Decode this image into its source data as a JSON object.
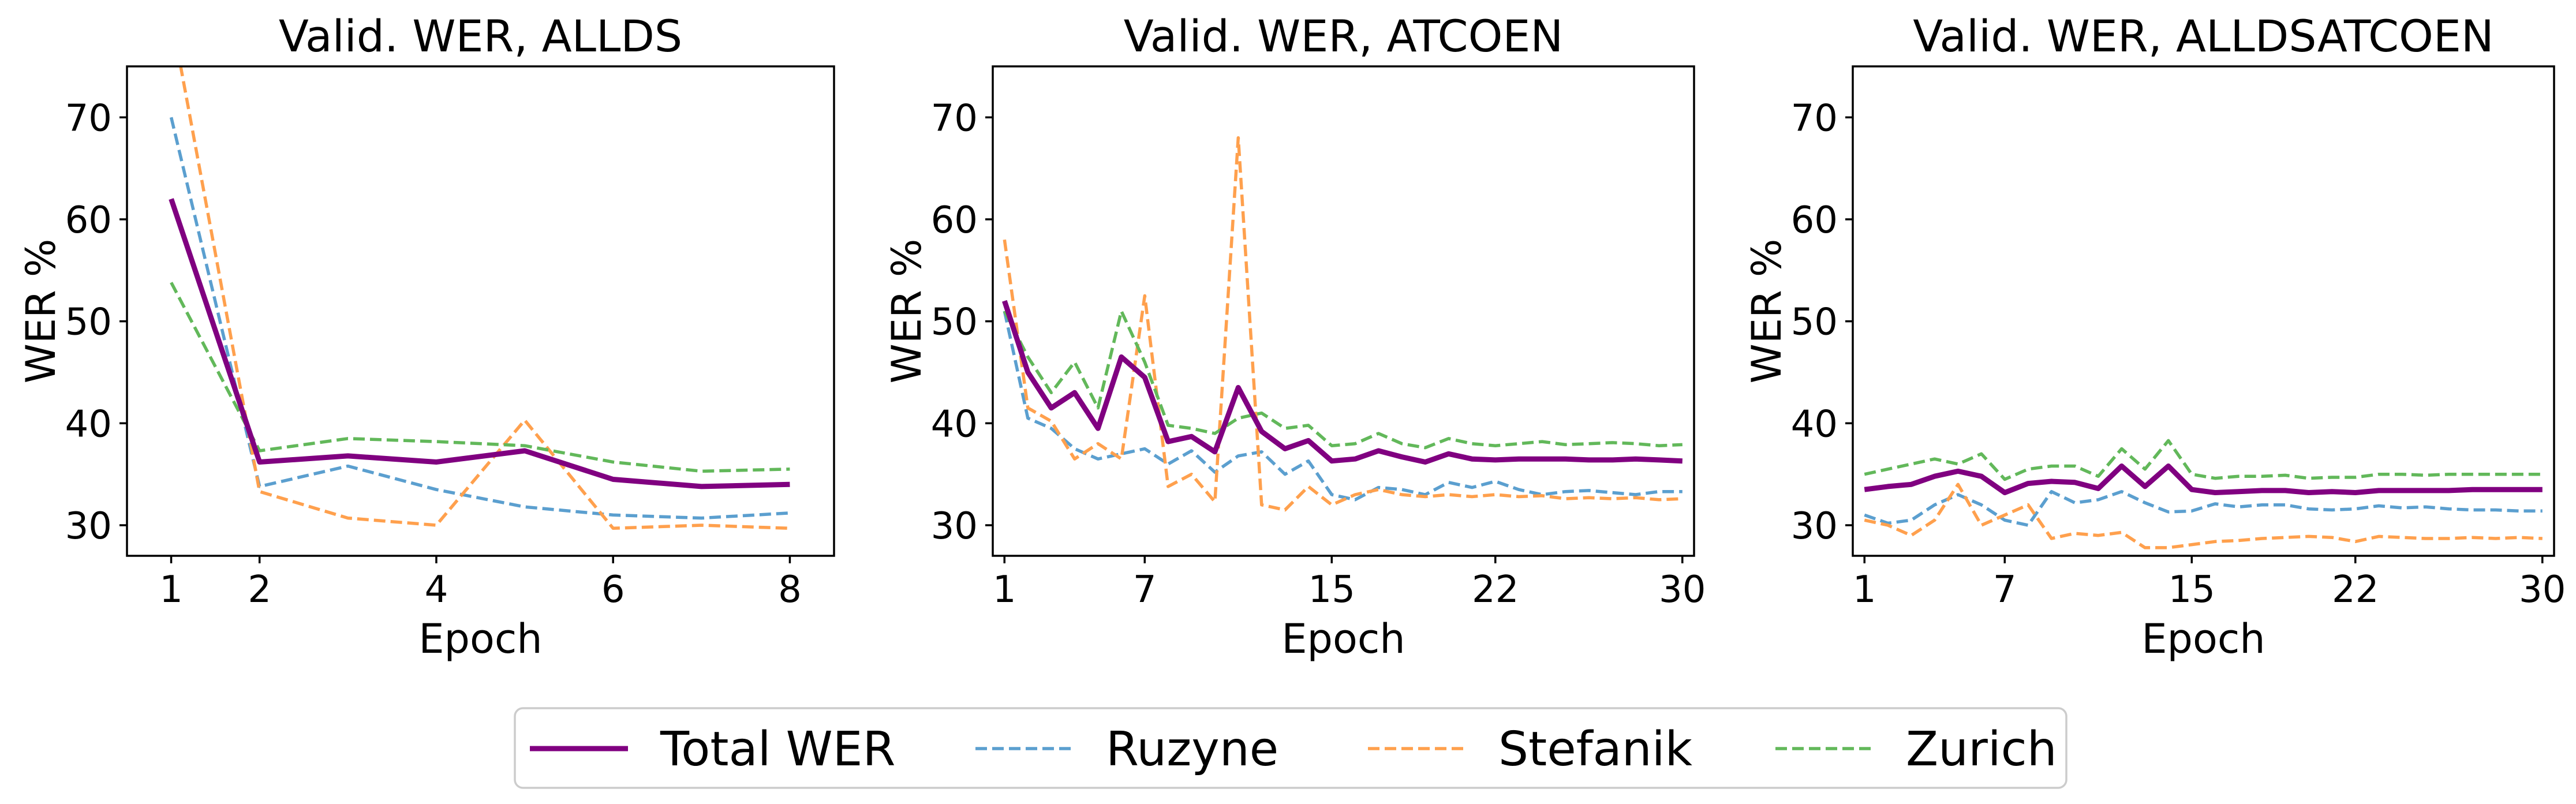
{
  "legend": {
    "placement": "bottom-center",
    "entries": [
      {
        "label": "Total WER",
        "color": "#800080",
        "style": "solid"
      },
      {
        "label": "Ruzyne",
        "color": "#5b9fcf",
        "style": "dashed"
      },
      {
        "label": "Stefanik",
        "color": "#ffa04d",
        "style": "dashed"
      },
      {
        "label": "Zurich",
        "color": "#62b85a",
        "style": "dashed"
      }
    ]
  },
  "chart_data": [
    {
      "type": "line",
      "title": "Valid. WER, ALLDS",
      "xlabel": "Epoch",
      "ylabel": "WER %",
      "xlim": [
        0.5,
        8.5
      ],
      "ylim": [
        27,
        75
      ],
      "xticks": [
        1,
        2,
        4,
        6,
        8
      ],
      "yticks": [
        30,
        40,
        50,
        60,
        70
      ],
      "x": [
        1,
        2,
        3,
        4,
        5,
        6,
        7,
        8
      ],
      "series": [
        {
          "name": "Total WER",
          "values": [
            62,
            36.2,
            36.8,
            36.2,
            37.3,
            34.5,
            33.8,
            34.0
          ]
        },
        {
          "name": "Ruzyne",
          "values": [
            70,
            33.8,
            35.8,
            33.5,
            31.8,
            31.0,
            30.7,
            31.2
          ]
        },
        {
          "name": "Stefanik",
          "values": [
            80,
            33.3,
            30.7,
            30.0,
            40.3,
            29.7,
            30.0,
            29.7
          ]
        },
        {
          "name": "Zurich",
          "values": [
            53.8,
            37.3,
            38.5,
            38.2,
            37.8,
            36.2,
            35.3,
            35.5
          ]
        }
      ]
    },
    {
      "type": "line",
      "title": "Valid. WER, ATCOEN",
      "xlabel": "Epoch",
      "ylabel": "WER %",
      "xlim": [
        0.5,
        30.5
      ],
      "ylim": [
        27,
        75
      ],
      "xticks": [
        1,
        7,
        15,
        22,
        30
      ],
      "yticks": [
        30,
        40,
        50,
        60,
        70
      ],
      "x": [
        1,
        2,
        3,
        4,
        5,
        6,
        7,
        8,
        9,
        10,
        11,
        12,
        13,
        14,
        15,
        16,
        17,
        18,
        19,
        20,
        21,
        22,
        23,
        24,
        25,
        26,
        27,
        28,
        29,
        30
      ],
      "series": [
        {
          "name": "Total WER",
          "values": [
            52,
            45,
            41.5,
            43,
            39.5,
            46.5,
            44.5,
            38.2,
            38.7,
            37.2,
            43.5,
            39.2,
            37.5,
            38.3,
            36.3,
            36.5,
            37.3,
            36.7,
            36.2,
            37.0,
            36.5,
            36.4,
            36.5,
            36.5,
            36.5,
            36.4,
            36.4,
            36.5,
            36.4,
            36.3
          ]
        },
        {
          "name": "Ruzyne",
          "values": [
            51,
            40.5,
            39.5,
            37.5,
            36.5,
            37.0,
            37.5,
            36.0,
            37.3,
            35.2,
            36.8,
            37.2,
            35.0,
            36.3,
            33.0,
            32.5,
            33.7,
            33.5,
            33.0,
            34.2,
            33.7,
            34.3,
            33.5,
            33.0,
            33.3,
            33.4,
            33.2,
            33.0,
            33.3,
            33.3
          ]
        },
        {
          "name": "Stefanik",
          "values": [
            58,
            41.5,
            40.2,
            36.5,
            38.0,
            36.5,
            52.5,
            33.8,
            35.0,
            32.3,
            68.0,
            32.0,
            31.5,
            33.8,
            32.0,
            33.0,
            33.5,
            33.0,
            32.8,
            33.0,
            32.8,
            33.0,
            32.8,
            32.9,
            32.6,
            32.7,
            32.6,
            32.7,
            32.5,
            32.6
          ]
        },
        {
          "name": "Zurich",
          "values": [
            51,
            46.5,
            43.0,
            46.0,
            41.5,
            51.0,
            46.0,
            39.8,
            39.5,
            39.0,
            40.5,
            41.0,
            39.5,
            39.8,
            37.8,
            38.0,
            39.0,
            38.0,
            37.6,
            38.5,
            38.0,
            37.8,
            38.0,
            38.2,
            37.9,
            38.0,
            38.1,
            38.0,
            37.8,
            37.9
          ]
        }
      ]
    },
    {
      "type": "line",
      "title": "Valid. WER, ALLDSATCOEN",
      "xlabel": "Epoch",
      "ylabel": "WER %",
      "xlim": [
        0.5,
        30.5
      ],
      "ylim": [
        27,
        75
      ],
      "xticks": [
        1,
        7,
        15,
        22,
        30
      ],
      "yticks": [
        30,
        40,
        50,
        60,
        70
      ],
      "x": [
        1,
        2,
        3,
        4,
        5,
        6,
        7,
        8,
        9,
        10,
        11,
        12,
        13,
        14,
        15,
        16,
        17,
        18,
        19,
        20,
        21,
        22,
        23,
        24,
        25,
        26,
        27,
        28,
        29,
        30
      ],
      "series": [
        {
          "name": "Total WER",
          "values": [
            33.5,
            33.8,
            34.0,
            34.8,
            35.3,
            34.8,
            33.2,
            34.1,
            34.3,
            34.2,
            33.6,
            35.8,
            33.8,
            35.8,
            33.5,
            33.2,
            33.3,
            33.4,
            33.4,
            33.2,
            33.3,
            33.2,
            33.4,
            33.4,
            33.4,
            33.4,
            33.5,
            33.5,
            33.5,
            33.5
          ]
        },
        {
          "name": "Ruzyne",
          "values": [
            31.0,
            30.2,
            30.5,
            32.0,
            33.0,
            32.0,
            30.5,
            30.0,
            33.3,
            32.2,
            32.5,
            33.3,
            32.2,
            31.3,
            31.4,
            32.1,
            31.8,
            32.0,
            32.0,
            31.6,
            31.5,
            31.6,
            31.9,
            31.7,
            31.8,
            31.6,
            31.5,
            31.5,
            31.4,
            31.4
          ]
        },
        {
          "name": "Stefanik",
          "values": [
            30.5,
            30.0,
            29.0,
            30.5,
            34.0,
            30.0,
            31.0,
            32.0,
            28.7,
            29.2,
            29.0,
            29.3,
            27.8,
            27.8,
            28.1,
            28.4,
            28.5,
            28.7,
            28.8,
            28.9,
            28.8,
            28.4,
            28.9,
            28.8,
            28.7,
            28.7,
            28.8,
            28.7,
            28.8,
            28.7
          ]
        },
        {
          "name": "Zurich",
          "values": [
            35.0,
            35.5,
            36.0,
            36.5,
            36.0,
            37.0,
            34.5,
            35.5,
            35.8,
            35.8,
            34.8,
            37.5,
            35.5,
            38.3,
            35.0,
            34.6,
            34.8,
            34.8,
            34.9,
            34.6,
            34.7,
            34.7,
            35.0,
            35.0,
            34.9,
            35.0,
            35.0,
            35.0,
            35.0,
            35.0
          ]
        }
      ]
    }
  ]
}
